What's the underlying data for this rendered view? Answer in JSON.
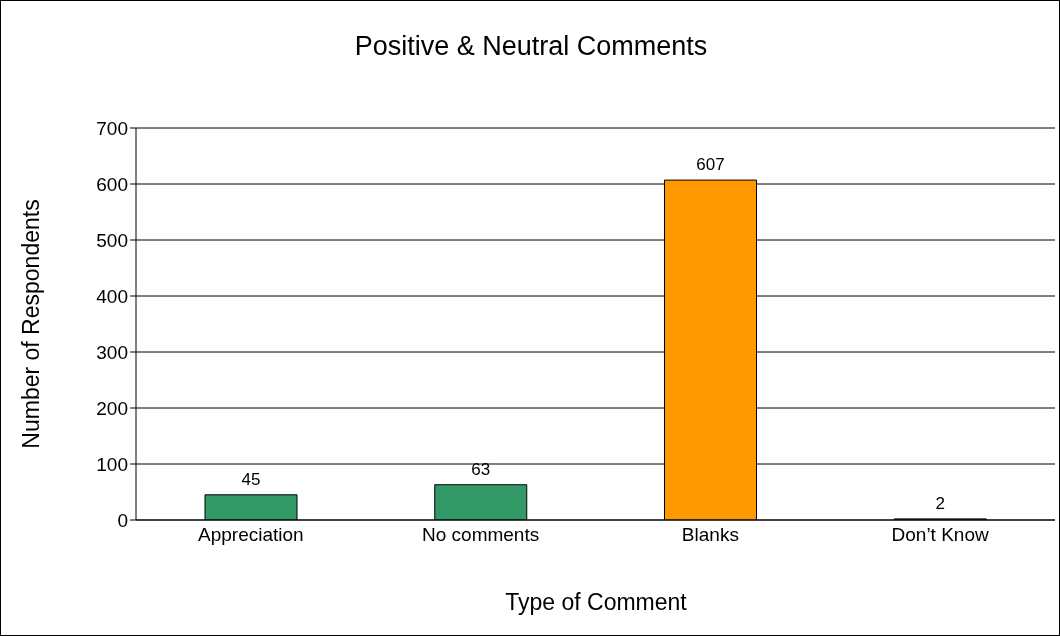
{
  "chart_data": {
    "type": "bar",
    "title": "Positive & Neutral Comments",
    "xlabel": "Type of Comment",
    "ylabel": "Number of Respondents",
    "categories": [
      "Appreciation",
      "No comments",
      "Blanks",
      "Don’t Know"
    ],
    "values": [
      45,
      63,
      607,
      2
    ],
    "colors": [
      "#339966",
      "#339966",
      "#ff9900",
      "#339966"
    ],
    "ylim": [
      0,
      700
    ],
    "yticks": [
      0,
      100,
      200,
      300,
      400,
      500,
      600,
      700
    ],
    "grid": "y",
    "data_labels": true,
    "legend": false
  }
}
